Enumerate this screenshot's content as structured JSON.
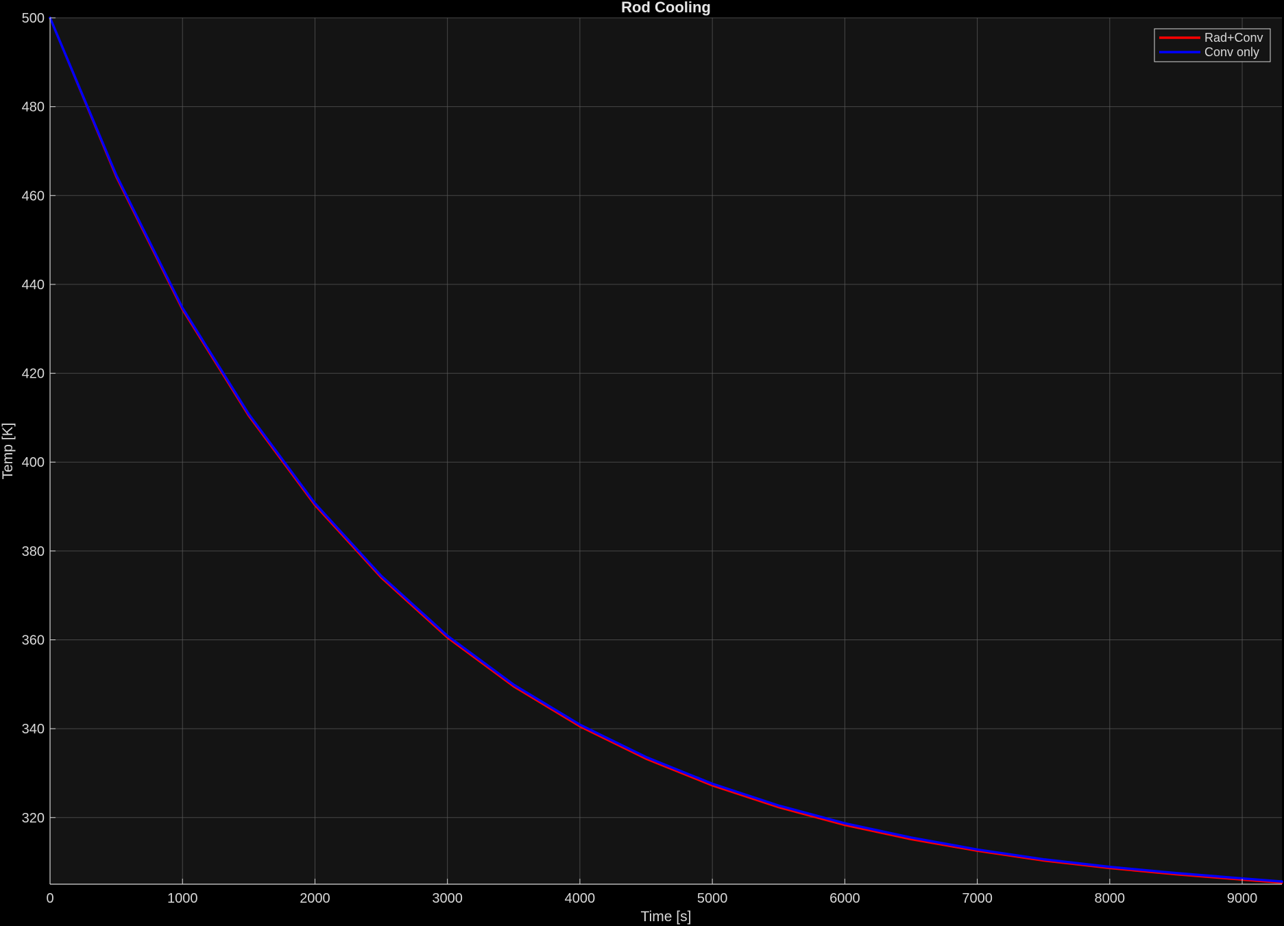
{
  "chart_data": {
    "type": "line",
    "title": "Rod Cooling",
    "xlabel": "Time [s]",
    "ylabel": "Temp [K]",
    "xlim": [
      0,
      9300
    ],
    "ylim": [
      305,
      500
    ],
    "x_ticks": [
      0,
      1000,
      2000,
      3000,
      4000,
      5000,
      6000,
      7000,
      8000,
      9000
    ],
    "y_ticks": [
      320,
      340,
      360,
      380,
      400,
      420,
      440,
      460,
      480,
      500
    ],
    "grid": true,
    "legend_position": "top-right",
    "background_color": "#141414",
    "figure_color": "#000000",
    "series": [
      {
        "name": "Rad+Conv",
        "color": "#ff0000",
        "x": [
          0,
          500,
          1000,
          1500,
          2000,
          2500,
          3000,
          3500,
          4000,
          4500,
          5000,
          5500,
          6000,
          6500,
          7000,
          7500,
          8000,
          8500,
          9000,
          9300
        ],
        "y": [
          500,
          464.2,
          434.3,
          410.4,
          390.3,
          374.0,
          360.5,
          349.5,
          340.5,
          333.2,
          327.2,
          322.3,
          318.3,
          315.1,
          312.5,
          310.3,
          308.6,
          307.2,
          306.0,
          305.3
        ]
      },
      {
        "name": "Conv only",
        "color": "#0000ff",
        "x": [
          0,
          500,
          1000,
          1500,
          2000,
          2500,
          3000,
          3500,
          4000,
          4500,
          5000,
          5500,
          6000,
          6500,
          7000,
          7500,
          8000,
          8500,
          9000,
          9300
        ],
        "y": [
          500,
          464.6,
          434.7,
          410.8,
          390.7,
          374.4,
          360.9,
          349.9,
          340.9,
          333.6,
          327.6,
          322.7,
          318.7,
          315.5,
          312.8,
          310.6,
          308.9,
          307.5,
          306.3,
          305.6
        ]
      }
    ]
  }
}
